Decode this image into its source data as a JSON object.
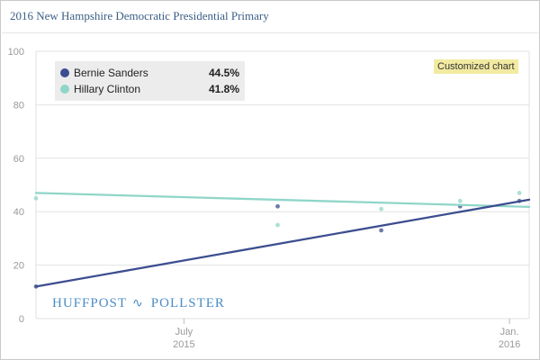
{
  "title": "2016 New Hampshire Democratic Presidential Primary",
  "customized_label": "Customized chart",
  "watermark": {
    "left": "HUFFPOST",
    "right": "POLLSTER",
    "icon": "pollster-bird-icon"
  },
  "colors": {
    "sanders": "#3c4e8f",
    "clinton": "#8fd6c8",
    "grid": "#e2e2e2",
    "axis_text": "#999999"
  },
  "chart_data": {
    "type": "line",
    "title": "2016 New Hampshire Democratic Presidential Primary",
    "xlabel": "",
    "ylabel": "",
    "ylim": [
      0,
      100
    ],
    "yticks": [
      0,
      20,
      40,
      60,
      80,
      100
    ],
    "xlim": [
      0,
      100
    ],
    "xticks": [
      {
        "x": 30,
        "label_top": "July",
        "label_bottom": "2015"
      },
      {
        "x": 96,
        "label_top": "Jan.",
        "label_bottom": "2016"
      }
    ],
    "legend": "top-left",
    "series": [
      {
        "name": "Bernie Sanders",
        "label_value": "44.5%",
        "color": "#3c4e8f",
        "trend": [
          [
            0,
            12
          ],
          [
            100,
            44.5
          ]
        ],
        "points": [
          [
            0,
            12
          ],
          [
            49,
            42
          ],
          [
            70,
            33
          ],
          [
            86,
            42
          ],
          [
            98,
            44
          ]
        ]
      },
      {
        "name": "Hillary Clinton",
        "label_value": "41.8%",
        "color": "#8fd6c8",
        "trend": [
          [
            0,
            47
          ],
          [
            100,
            41.8
          ]
        ],
        "points": [
          [
            0,
            45
          ],
          [
            49,
            35
          ],
          [
            70,
            41
          ],
          [
            86,
            44
          ],
          [
            98,
            47
          ]
        ]
      }
    ]
  }
}
